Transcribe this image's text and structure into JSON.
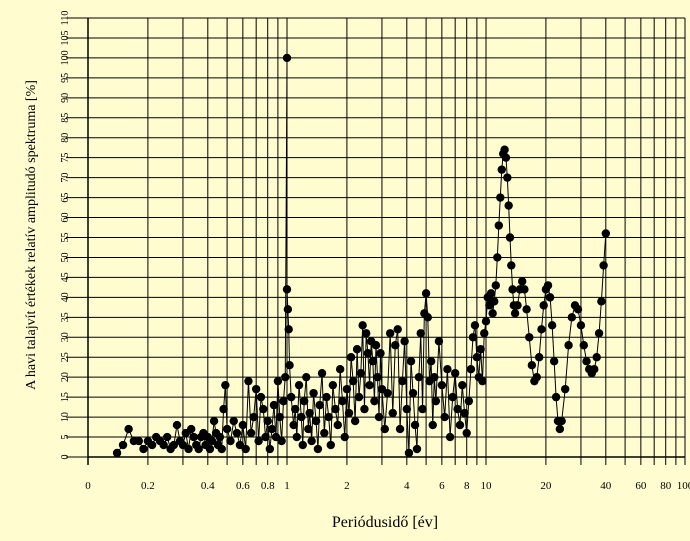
{
  "chart_data": {
    "type": "scatter",
    "title": "",
    "xlabel": "Periódusidő [év]",
    "ylabel": "A havi talajvít értékek relatív amplitudó spektruma [%]",
    "x_scale": "log",
    "xlim": [
      0.1,
      100
    ],
    "ylim": [
      0,
      110
    ],
    "grid": true,
    "legend": "none",
    "x_ticks": [
      {
        "v": 0.2,
        "label": "0.2"
      },
      {
        "v": 0.4,
        "label": "0.4"
      },
      {
        "v": 0.6,
        "label": "0.6"
      },
      {
        "v": 0.8,
        "label": "0.8"
      },
      {
        "v": 1,
        "label": "1"
      },
      {
        "v": 2,
        "label": "2"
      },
      {
        "v": 4,
        "label": "4"
      },
      {
        "v": 6,
        "label": "6"
      },
      {
        "v": 8,
        "label": "8"
      },
      {
        "v": 10,
        "label": "10"
      },
      {
        "v": 20,
        "label": "20"
      },
      {
        "v": 40,
        "label": "40"
      },
      {
        "v": 60,
        "label": "60"
      },
      {
        "v": 80,
        "label": "80"
      },
      {
        "v": 100,
        "label": "100"
      }
    ],
    "x_extra_label": "0",
    "y_ticks": [
      {
        "v": 0,
        "label": "0"
      },
      {
        "v": 5,
        "label": "5"
      },
      {
        "v": 10,
        "label": "10"
      },
      {
        "v": 15,
        "label": "15"
      },
      {
        "v": 20,
        "label": "20"
      },
      {
        "v": 25,
        "label": "25"
      },
      {
        "v": 30,
        "label": "30"
      },
      {
        "v": 35,
        "label": "35"
      },
      {
        "v": 40,
        "label": "40"
      },
      {
        "v": 45,
        "label": "45"
      },
      {
        "v": 50,
        "label": "50"
      },
      {
        "v": 55,
        "label": "55"
      },
      {
        "v": 60,
        "label": "60"
      },
      {
        "v": 65,
        "label": "65"
      },
      {
        "v": 70,
        "label": "70"
      },
      {
        "v": 75,
        "label": "75"
      },
      {
        "v": 80,
        "label": "80"
      },
      {
        "v": 85,
        "label": "85"
      },
      {
        "v": 90,
        "label": "90"
      },
      {
        "v": 95,
        "label": "95"
      },
      {
        "v": 100,
        "label": "100"
      },
      {
        "v": 105,
        "label": "105"
      },
      {
        "v": 110,
        "label": "110"
      }
    ],
    "series": [
      {
        "points": [
          [
            0.14,
            1
          ],
          [
            0.15,
            3
          ],
          [
            0.16,
            7
          ],
          [
            0.17,
            4
          ],
          [
            0.18,
            4
          ],
          [
            0.19,
            2
          ],
          [
            0.2,
            4
          ],
          [
            0.21,
            3
          ],
          [
            0.22,
            5
          ],
          [
            0.23,
            4
          ],
          [
            0.24,
            3
          ],
          [
            0.25,
            5
          ],
          [
            0.26,
            2
          ],
          [
            0.27,
            3
          ],
          [
            0.28,
            8
          ],
          [
            0.29,
            4
          ],
          [
            0.3,
            3
          ],
          [
            0.31,
            6
          ],
          [
            0.32,
            2
          ],
          [
            0.33,
            7
          ],
          [
            0.34,
            5
          ],
          [
            0.35,
            3
          ],
          [
            0.36,
            2
          ],
          [
            0.37,
            5
          ],
          [
            0.38,
            6
          ],
          [
            0.39,
            3
          ],
          [
            0.4,
            5
          ],
          [
            0.41,
            2
          ],
          [
            0.42,
            4
          ],
          [
            0.43,
            9
          ],
          [
            0.44,
            6
          ],
          [
            0.45,
            3
          ],
          [
            0.46,
            5
          ],
          [
            0.47,
            2
          ],
          [
            0.48,
            12
          ],
          [
            0.49,
            18
          ],
          [
            0.5,
            7
          ],
          [
            0.52,
            4
          ],
          [
            0.54,
            9
          ],
          [
            0.56,
            6
          ],
          [
            0.58,
            3
          ],
          [
            0.6,
            8
          ],
          [
            0.62,
            2
          ],
          [
            0.64,
            19
          ],
          [
            0.66,
            6
          ],
          [
            0.68,
            10
          ],
          [
            0.7,
            17
          ],
          [
            0.72,
            4
          ],
          [
            0.74,
            15
          ],
          [
            0.76,
            12
          ],
          [
            0.78,
            5
          ],
          [
            0.8,
            9
          ],
          [
            0.82,
            2
          ],
          [
            0.84,
            7
          ],
          [
            0.86,
            13
          ],
          [
            0.88,
            5
          ],
          [
            0.9,
            19
          ],
          [
            0.92,
            10
          ],
          [
            0.94,
            4
          ],
          [
            0.96,
            14
          ],
          [
            0.98,
            20
          ],
          [
            1.0,
            100
          ],
          [
            1.0,
            42
          ],
          [
            1.01,
            37
          ],
          [
            1.02,
            32
          ],
          [
            1.03,
            23
          ],
          [
            1.05,
            15
          ],
          [
            1.08,
            8
          ],
          [
            1.1,
            12
          ],
          [
            1.12,
            5
          ],
          [
            1.15,
            18
          ],
          [
            1.18,
            10
          ],
          [
            1.2,
            3
          ],
          [
            1.22,
            14
          ],
          [
            1.25,
            20
          ],
          [
            1.28,
            7
          ],
          [
            1.3,
            11
          ],
          [
            1.33,
            4
          ],
          [
            1.36,
            16
          ],
          [
            1.4,
            9
          ],
          [
            1.43,
            2
          ],
          [
            1.46,
            13
          ],
          [
            1.5,
            21
          ],
          [
            1.54,
            6
          ],
          [
            1.58,
            15
          ],
          [
            1.62,
            10
          ],
          [
            1.66,
            3
          ],
          [
            1.7,
            18
          ],
          [
            1.75,
            12
          ],
          [
            1.8,
            8
          ],
          [
            1.85,
            22
          ],
          [
            1.9,
            14
          ],
          [
            1.95,
            5
          ],
          [
            2.0,
            17
          ],
          [
            2.05,
            11
          ],
          [
            2.1,
            25
          ],
          [
            2.15,
            19
          ],
          [
            2.2,
            9
          ],
          [
            2.25,
            27
          ],
          [
            2.3,
            15
          ],
          [
            2.35,
            21
          ],
          [
            2.4,
            33
          ],
          [
            2.45,
            12
          ],
          [
            2.5,
            31
          ],
          [
            2.55,
            26
          ],
          [
            2.6,
            18
          ],
          [
            2.65,
            29
          ],
          [
            2.7,
            24
          ],
          [
            2.75,
            14
          ],
          [
            2.8,
            28
          ],
          [
            2.85,
            20
          ],
          [
            2.9,
            10
          ],
          [
            2.95,
            26
          ],
          [
            3.0,
            17
          ],
          [
            3.1,
            7
          ],
          [
            3.2,
            16
          ],
          [
            3.3,
            31
          ],
          [
            3.4,
            11
          ],
          [
            3.5,
            28
          ],
          [
            3.6,
            32
          ],
          [
            3.7,
            7
          ],
          [
            3.8,
            19
          ],
          [
            3.9,
            29
          ],
          [
            4.0,
            12
          ],
          [
            4.1,
            1
          ],
          [
            4.2,
            24
          ],
          [
            4.3,
            16
          ],
          [
            4.4,
            8
          ],
          [
            4.5,
            2
          ],
          [
            4.6,
            20
          ],
          [
            4.7,
            31
          ],
          [
            4.8,
            12
          ],
          [
            4.9,
            36
          ],
          [
            5.0,
            41
          ],
          [
            5.1,
            35
          ],
          [
            5.2,
            19
          ],
          [
            5.3,
            24
          ],
          [
            5.4,
            8
          ],
          [
            5.5,
            20
          ],
          [
            5.6,
            14
          ],
          [
            5.8,
            29
          ],
          [
            6.0,
            18
          ],
          [
            6.2,
            10
          ],
          [
            6.4,
            22
          ],
          [
            6.6,
            5
          ],
          [
            6.8,
            15
          ],
          [
            7.0,
            21
          ],
          [
            7.2,
            12
          ],
          [
            7.4,
            8
          ],
          [
            7.6,
            18
          ],
          [
            7.8,
            11
          ],
          [
            8.0,
            6
          ],
          [
            8.2,
            14
          ],
          [
            8.4,
            22
          ],
          [
            8.6,
            30
          ],
          [
            8.8,
            33
          ],
          [
            9.0,
            25
          ],
          [
            9.2,
            20
          ],
          [
            9.4,
            27
          ],
          [
            9.6,
            19
          ],
          [
            9.8,
            31
          ],
          [
            10.0,
            34
          ],
          [
            10.2,
            40
          ],
          [
            10.4,
            38
          ],
          [
            10.6,
            41
          ],
          [
            10.8,
            36
          ],
          [
            11.0,
            39
          ],
          [
            11.2,
            43
          ],
          [
            11.4,
            50
          ],
          [
            11.6,
            58
          ],
          [
            11.8,
            65
          ],
          [
            12.0,
            72
          ],
          [
            12.2,
            76
          ],
          [
            12.4,
            77
          ],
          [
            12.6,
            75
          ],
          [
            12.8,
            70
          ],
          [
            13.0,
            63
          ],
          [
            13.2,
            55
          ],
          [
            13.4,
            48
          ],
          [
            13.6,
            42
          ],
          [
            13.8,
            38
          ],
          [
            14.0,
            36
          ],
          [
            14.4,
            38
          ],
          [
            14.8,
            42
          ],
          [
            15.2,
            44
          ],
          [
            15.6,
            42
          ],
          [
            16.0,
            37
          ],
          [
            16.5,
            30
          ],
          [
            17.0,
            23
          ],
          [
            17.5,
            19
          ],
          [
            18.0,
            20
          ],
          [
            18.5,
            25
          ],
          [
            19.0,
            32
          ],
          [
            19.5,
            38
          ],
          [
            20.0,
            42
          ],
          [
            20.5,
            43
          ],
          [
            21.0,
            40
          ],
          [
            21.5,
            33
          ],
          [
            22.0,
            24
          ],
          [
            22.5,
            15
          ],
          [
            23.0,
            9
          ],
          [
            23.5,
            7
          ],
          [
            24.0,
            9
          ],
          [
            25.0,
            17
          ],
          [
            26.0,
            28
          ],
          [
            27.0,
            35
          ],
          [
            28.0,
            38
          ],
          [
            29.0,
            37
          ],
          [
            30.0,
            33
          ],
          [
            31.0,
            28
          ],
          [
            32.0,
            24
          ],
          [
            33.0,
            22
          ],
          [
            34.0,
            21
          ],
          [
            35.0,
            22
          ],
          [
            36.0,
            25
          ],
          [
            37.0,
            31
          ],
          [
            38.0,
            39
          ],
          [
            39.0,
            48
          ],
          [
            40.0,
            56
          ]
        ]
      }
    ]
  }
}
